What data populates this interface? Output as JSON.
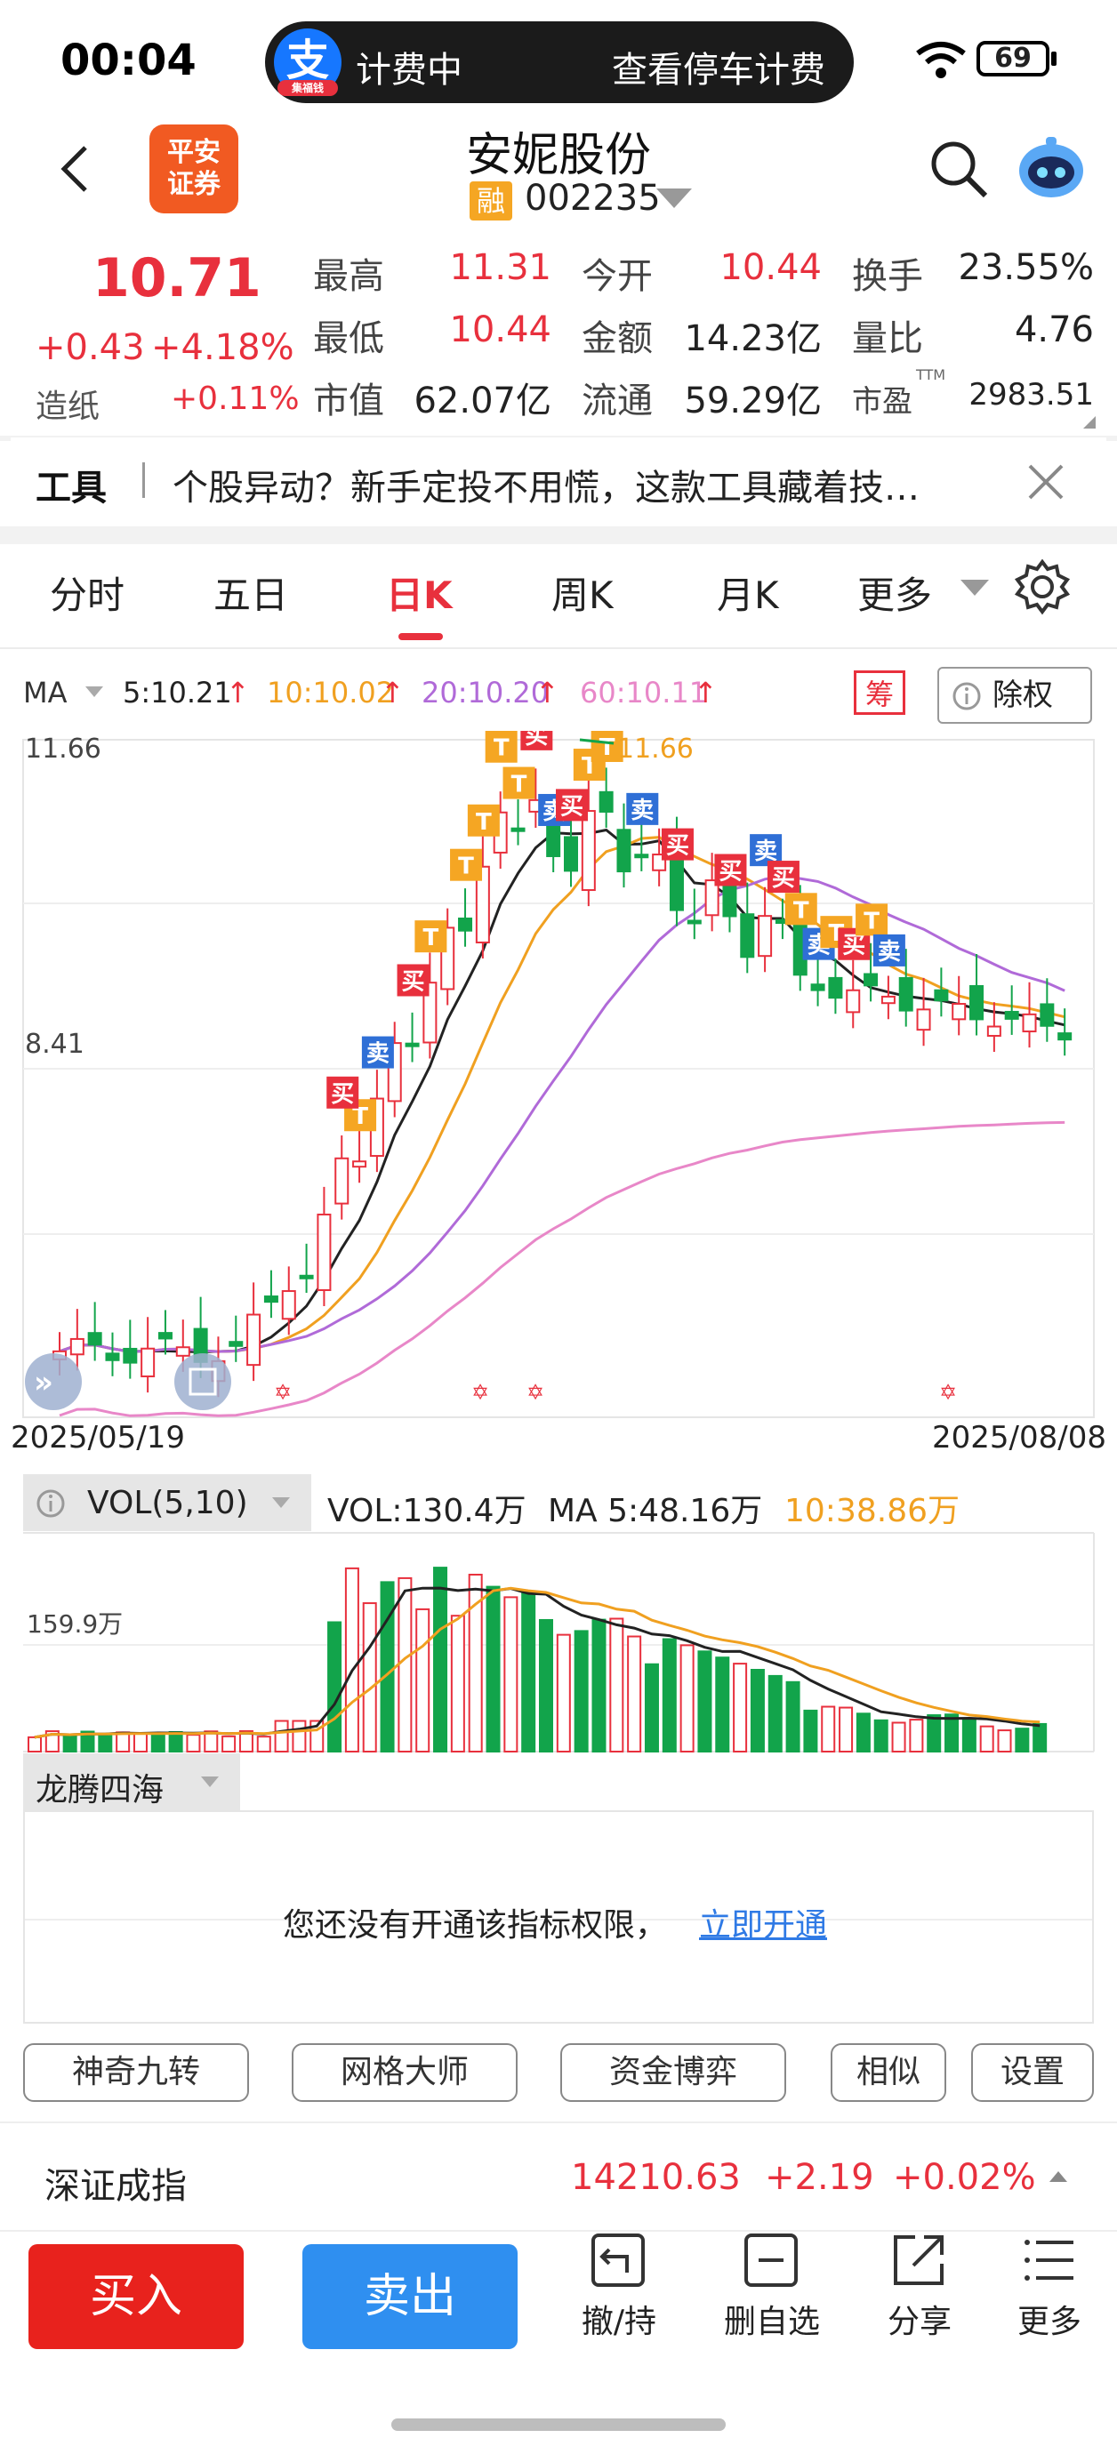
{
  "status_bar": {
    "time": "00:04",
    "alipay_icon": "支",
    "alipay_badge": "集福钱",
    "pill_left": "计费中",
    "pill_right": "查看停车计费",
    "battery": "69"
  },
  "header": {
    "logo": "平安证券",
    "logo_line1": "平安",
    "logo_line2": "证券",
    "stock_name": "安妮股份",
    "margin_badge": "融",
    "stock_code": "002235"
  },
  "quote": {
    "price": "10.71",
    "change": "+0.43",
    "change_pct": "+4.18%",
    "sector": "造纸",
    "sector_pct": "+0.11%",
    "fields": [
      {
        "label": "最高",
        "value": "11.31",
        "color": "#e8303d"
      },
      {
        "label": "今开",
        "value": "10.44",
        "color": "#e8303d"
      },
      {
        "label": "换手",
        "value": "23.55%",
        "color": "#222222"
      },
      {
        "label": "最低",
        "value": "10.44",
        "color": "#e8303d"
      },
      {
        "label": "金额",
        "value": "14.23亿",
        "color": "#222222"
      },
      {
        "label": "量比",
        "value": "4.76",
        "color": "#222222"
      },
      {
        "label": "市值",
        "value": "62.07亿",
        "color": "#222222"
      },
      {
        "label": "流通",
        "value": "59.29亿",
        "color": "#222222"
      },
      {
        "label": "市盈",
        "value": "2983.51",
        "color": "#222222"
      }
    ],
    "pe_superscript": "TTM"
  },
  "notice": {
    "tag": "工具",
    "text": "个股异动？新手定投不用慌，这款工具藏着技…"
  },
  "tabs": [
    "分时",
    "五日",
    "日K",
    "周K",
    "月K",
    "更多"
  ],
  "active_tab": "日K",
  "ma_row": {
    "label": "MA",
    "ma5": "5:10.21",
    "ma10": "10:10.02",
    "ma20": "20:10.20",
    "ma60": "60:10.11",
    "chip": "筹",
    "ex_rights": "除权"
  },
  "kline": {
    "y_top_label": "11.66",
    "y_mid_label": "8.41",
    "high_marker": "11.66",
    "date_start": "2025/05/19",
    "date_end": "2025/08/08",
    "signal_buy": "买",
    "signal_sell": "卖",
    "signal_t": "T",
    "colors": {
      "up": "#e8303d",
      "down": "#12a44b",
      "ma5": "#222222",
      "ma10": "#f0a020",
      "ma20": "#b06ad8",
      "ma60": "#e887c8"
    }
  },
  "volume": {
    "label": "VOL(5,10)",
    "vol": "VOL:130.4万",
    "ma5": "MA 5:48.16万",
    "ma10": "10:38.86万",
    "y_label": "159.9万"
  },
  "indicator": {
    "name": "龙腾四海",
    "locked_text": "您还没有开通该指标权限，",
    "unlock_link": "立即开通"
  },
  "plugin_buttons": [
    "神奇九转",
    "网格大师",
    "资金博弈",
    "相似",
    "设置"
  ],
  "index_bar": {
    "name": "深证成指",
    "value": "14210.63",
    "change": "+2.19",
    "change_pct": "+0.02%"
  },
  "actions": {
    "buy": "买入",
    "sell": "卖出",
    "items": [
      "撤/持",
      "删自选",
      "分享",
      "更多"
    ]
  }
}
